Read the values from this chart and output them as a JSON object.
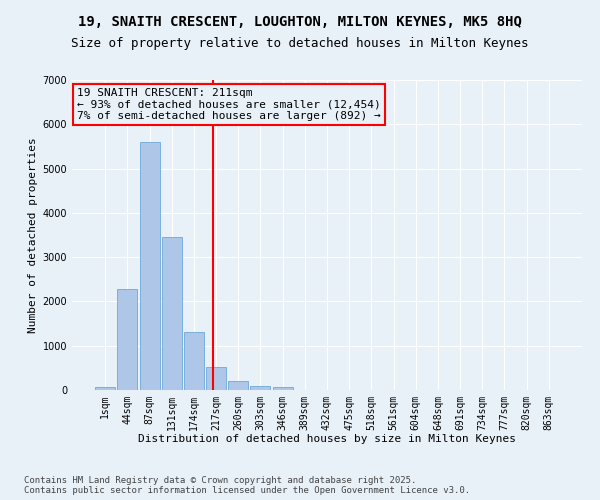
{
  "title_line1": "19, SNAITH CRESCENT, LOUGHTON, MILTON KEYNES, MK5 8HQ",
  "title_line2": "Size of property relative to detached houses in Milton Keynes",
  "xlabel": "Distribution of detached houses by size in Milton Keynes",
  "ylabel": "Number of detached properties",
  "bar_labels": [
    "1sqm",
    "44sqm",
    "87sqm",
    "131sqm",
    "174sqm",
    "217sqm",
    "260sqm",
    "303sqm",
    "346sqm",
    "389sqm",
    "432sqm",
    "475sqm",
    "518sqm",
    "561sqm",
    "604sqm",
    "648sqm",
    "691sqm",
    "734sqm",
    "777sqm",
    "820sqm",
    "863sqm"
  ],
  "bar_values": [
    70,
    2290,
    5600,
    3450,
    1320,
    510,
    200,
    100,
    60,
    0,
    0,
    0,
    0,
    0,
    0,
    0,
    0,
    0,
    0,
    0,
    0
  ],
  "bar_color": "#aec6e8",
  "bar_edgecolor": "#5a9fd4",
  "vline_x": 4.88,
  "vline_color": "red",
  "annotation_text": "19 SNAITH CRESCENT: 211sqm\n← 93% of detached houses are smaller (12,454)\n7% of semi-detached houses are larger (892) →",
  "annotation_box_color": "red",
  "ylim": [
    0,
    7000
  ],
  "yticks": [
    0,
    1000,
    2000,
    3000,
    4000,
    5000,
    6000,
    7000
  ],
  "background_color": "#e8f0f8",
  "grid_color": "white",
  "footer_line1": "Contains HM Land Registry data © Crown copyright and database right 2025.",
  "footer_line2": "Contains public sector information licensed under the Open Government Licence v3.0.",
  "title_fontsize": 10,
  "subtitle_fontsize": 9,
  "xlabel_fontsize": 8,
  "ylabel_fontsize": 8,
  "tick_fontsize": 7,
  "footer_fontsize": 6.5,
  "annotation_fontsize": 8
}
